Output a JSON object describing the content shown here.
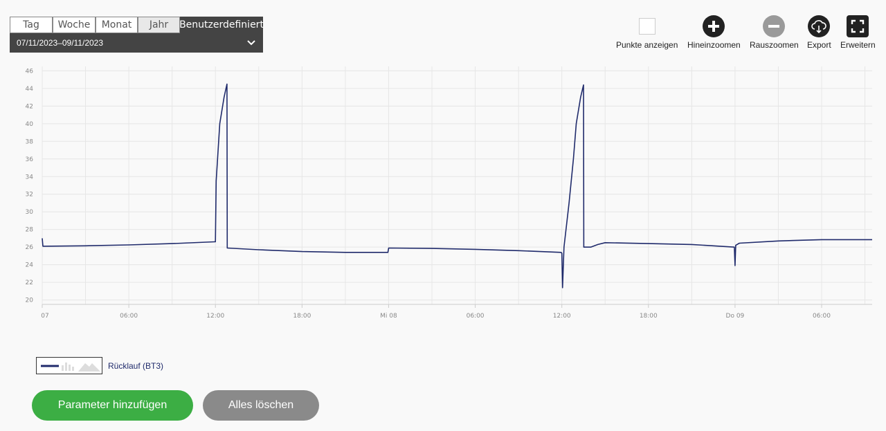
{
  "period": {
    "tabs": [
      "Tag",
      "Woche",
      "Monat",
      "Jahr",
      "Benutzerdefiniert"
    ],
    "active_tab": "Benutzerdefiniert",
    "range": "07/11/2023–09/11/2023"
  },
  "toolbar": {
    "show_points": "Punkte anzeigen",
    "zoom_in": "Hineinzoomen",
    "zoom_out": "Rauszoomen",
    "export": "Export",
    "expand": "Erweitern"
  },
  "chart_data": {
    "type": "line",
    "ylim": [
      19.5,
      46.5
    ],
    "y_ticks": [
      20,
      22,
      24,
      26,
      28,
      30,
      32,
      34,
      36,
      38,
      40,
      42,
      44,
      46
    ],
    "xlim_hours": [
      0,
      57.5
    ],
    "x_tick_labels": [
      {
        "h": 0,
        "label": "07"
      },
      {
        "h": 6,
        "label": "06:00"
      },
      {
        "h": 12,
        "label": "12:00"
      },
      {
        "h": 18,
        "label": "18:00"
      },
      {
        "h": 24,
        "label": "Mi 08"
      },
      {
        "h": 30,
        "label": "06:00"
      },
      {
        "h": 36,
        "label": "12:00"
      },
      {
        "h": 42,
        "label": "18:00"
      },
      {
        "h": 48,
        "label": "Do 09"
      },
      {
        "h": 54,
        "label": "06:00"
      }
    ],
    "grid": true,
    "series": [
      {
        "name": "Rücklauf (BT3)",
        "color": "#1f2a6b",
        "points": [
          [
            0,
            27.0
          ],
          [
            0.05,
            26.1
          ],
          [
            3,
            26.15
          ],
          [
            6,
            26.25
          ],
          [
            9,
            26.4
          ],
          [
            11.95,
            26.6
          ],
          [
            12.0,
            26.6
          ],
          [
            12.05,
            33.5
          ],
          [
            12.3,
            40.0
          ],
          [
            12.6,
            43.0
          ],
          [
            12.8,
            44.5
          ],
          [
            12.82,
            25.9
          ],
          [
            15,
            25.7
          ],
          [
            18,
            25.5
          ],
          [
            21,
            25.4
          ],
          [
            23.95,
            25.4
          ],
          [
            24.0,
            25.9
          ],
          [
            27,
            25.85
          ],
          [
            30,
            25.75
          ],
          [
            33,
            25.6
          ],
          [
            35.95,
            25.4
          ],
          [
            36.0,
            25.3
          ],
          [
            36.05,
            21.4
          ],
          [
            36.15,
            26.0
          ],
          [
            36.5,
            31.0
          ],
          [
            36.8,
            36.0
          ],
          [
            37.0,
            40.0
          ],
          [
            37.3,
            43.0
          ],
          [
            37.5,
            44.4
          ],
          [
            37.52,
            26.0
          ],
          [
            38,
            26.0
          ],
          [
            38.5,
            26.3
          ],
          [
            39,
            26.5
          ],
          [
            42,
            26.4
          ],
          [
            45,
            26.3
          ],
          [
            47.95,
            26.0
          ],
          [
            48.0,
            23.9
          ],
          [
            48.05,
            26.2
          ],
          [
            48.3,
            26.45
          ],
          [
            51,
            26.7
          ],
          [
            54,
            26.85
          ],
          [
            57.5,
            26.85
          ]
        ]
      }
    ]
  },
  "legend": {
    "label": "Rücklauf (BT3)"
  },
  "buttons": {
    "add": "Parameter hinzufügen",
    "clear": "Alles löschen"
  }
}
